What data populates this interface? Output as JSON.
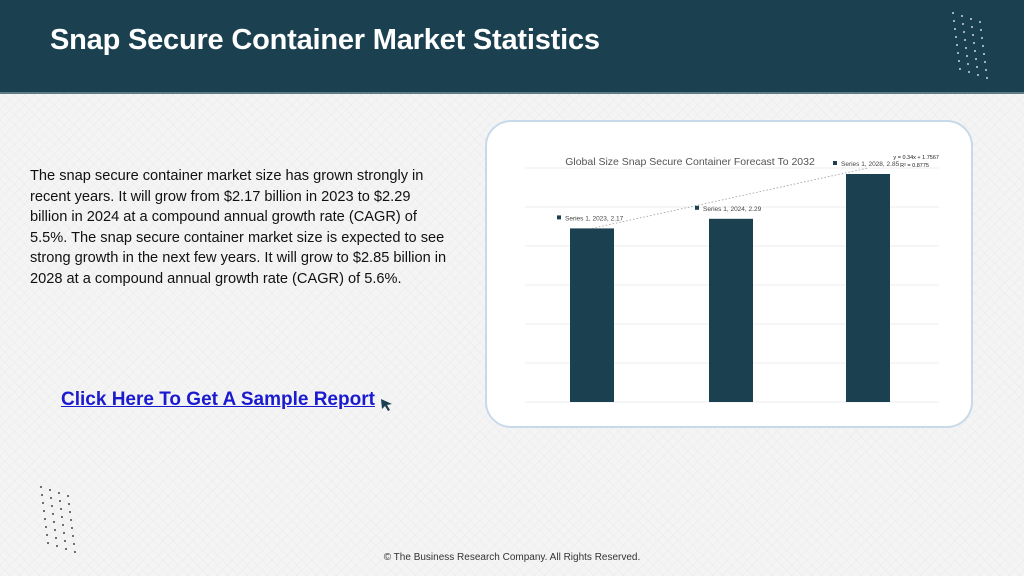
{
  "header": {
    "title": "Snap Secure Container Market Statistics"
  },
  "body": {
    "paragraph": "The snap secure container market size has grown strongly in recent years. It will grow from $2.17 billion in 2023 to $2.29 billion in 2024 at a compound annual growth rate (CAGR) of 5.5%. The snap secure container market size is expected to see strong growth in the next few years. It will grow to $2.85 billion in 2028 at a compound annual growth rate (CAGR) of 5.6%.",
    "cta_label": "Click Here To Get A Sample Report"
  },
  "footer": {
    "copyright": "© The Business Research Company. All Rights Reserved."
  },
  "colors": {
    "header_bg": "#1b4050",
    "bar": "#1b4050",
    "link": "#1a1ad0"
  },
  "chart_data": {
    "type": "bar",
    "title": "Global Size Snap Secure Container Forecast To 2032",
    "categories": [
      "2023",
      "2024",
      "2028"
    ],
    "series": [
      {
        "name": "Series 1",
        "values": [
          2.17,
          2.29,
          2.85
        ]
      }
    ],
    "data_labels": [
      "Series 1, 2023, 2.17",
      "Series 1, 2024, 2.29",
      "Series 1, 2028, 2.85"
    ],
    "trendline": {
      "equation": "y = 0.34x + 1.7567",
      "r_squared": "R² = 0.8775"
    },
    "ylim": [
      0,
      3
    ],
    "grid": true,
    "legend": "none"
  }
}
